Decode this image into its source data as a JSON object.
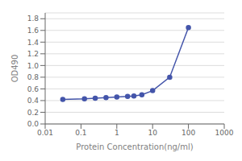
{
  "chart_data": {
    "type": "line",
    "x": [
      0.031,
      0.125,
      0.25,
      0.5,
      1.0,
      2.0,
      3.0,
      5.0,
      10.0,
      30.0,
      100.0
    ],
    "values": [
      0.42,
      0.43,
      0.44,
      0.45,
      0.46,
      0.47,
      0.48,
      0.5,
      0.57,
      0.8,
      1.65
    ],
    "color": "#4455aa",
    "marker": "circle",
    "xlabel": "Protein Concentration(ng/ml)",
    "ylabel": "OD490",
    "log": "x",
    "xlim": [
      0.01,
      1000
    ],
    "ylim": [
      0.0,
      1.9
    ],
    "xticks": [
      0.01,
      0.1,
      1,
      10,
      100,
      1000
    ],
    "yticks": [
      {
        "value": 0,
        "label": "0.0"
      },
      0.2,
      0.4,
      0.6,
      0.8,
      {
        "value": 1,
        "label": "1.0"
      },
      1.2,
      1.4,
      1.6,
      1.8
    ],
    "grid": "y"
  }
}
